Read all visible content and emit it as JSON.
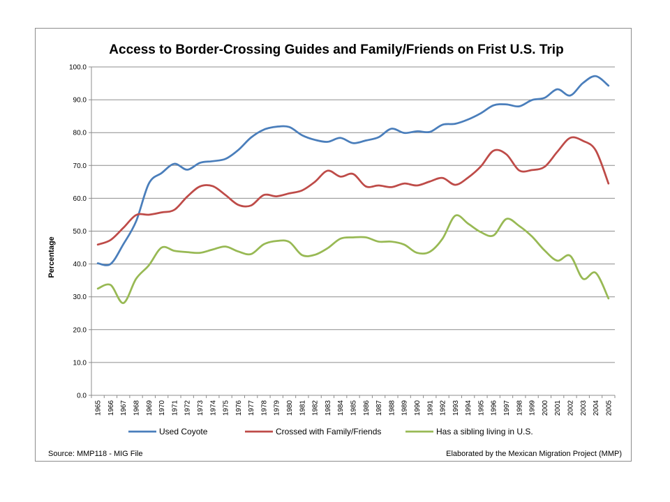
{
  "chart_data": {
    "type": "line",
    "title": "Access to Border-Crossing Guides and Family/Friends on Frist U.S. Trip",
    "ylabel": "Percentage",
    "xlabel": "",
    "ylim": [
      0,
      100
    ],
    "ytick_labels": [
      "0.0",
      "10.0",
      "20.0",
      "30.0",
      "40.0",
      "50.0",
      "60.0",
      "70.0",
      "80.0",
      "90.0",
      "100.0"
    ],
    "grid": "horizontal",
    "legend_position": "bottom",
    "categories": [
      "1965",
      "1966",
      "1967",
      "1968",
      "1969",
      "1970",
      "1971",
      "1972",
      "1973",
      "1974",
      "1975",
      "1976",
      "1977",
      "1978",
      "1979",
      "1980",
      "1981",
      "1982",
      "1983",
      "1984",
      "1985",
      "1986",
      "1987",
      "1988",
      "1989",
      "1990",
      "1991",
      "1992",
      "1993",
      "1994",
      "1995",
      "1996",
      "1997",
      "1998",
      "1999",
      "2000",
      "2001",
      "2002",
      "2003",
      "2004",
      "2005"
    ],
    "series": [
      {
        "name": "Used Coyote",
        "color": "#4a7ebb",
        "values": [
          40.2,
          40.0,
          46.0,
          53.0,
          64.5,
          67.7,
          70.5,
          68.7,
          70.8,
          71.3,
          72.0,
          74.7,
          78.5,
          80.9,
          81.8,
          81.7,
          79.2,
          77.8,
          77.2,
          78.4,
          76.8,
          77.6,
          78.6,
          81.2,
          79.9,
          80.4,
          80.2,
          82.4,
          82.7,
          84.0,
          85.9,
          88.3,
          88.6,
          88.0,
          89.9,
          90.6,
          93.2,
          91.3,
          95.1,
          97.2,
          94.3
        ]
      },
      {
        "name": "Crossed with Family/Friends",
        "color": "#be4b48",
        "values": [
          45.9,
          47.3,
          51.0,
          54.9,
          55.0,
          55.7,
          56.5,
          60.5,
          63.6,
          63.7,
          61.0,
          58.0,
          57.8,
          61.0,
          60.6,
          61.5,
          62.4,
          65.0,
          68.4,
          66.6,
          67.4,
          63.6,
          63.9,
          63.4,
          64.5,
          63.9,
          65.1,
          66.2,
          64.1,
          66.3,
          69.7,
          74.5,
          73.4,
          68.5,
          68.6,
          69.6,
          74.2,
          78.4,
          77.5,
          74.6,
          64.5
        ]
      },
      {
        "name": "Has a sibling living in U.S.",
        "color": "#98b954",
        "values": [
          32.5,
          33.6,
          28.1,
          35.5,
          39.6,
          45.0,
          44.0,
          43.6,
          43.4,
          44.4,
          45.3,
          43.8,
          43.0,
          46.0,
          47.0,
          46.7,
          42.7,
          42.8,
          44.8,
          47.7,
          48.1,
          48.1,
          46.8,
          46.8,
          45.9,
          43.4,
          43.7,
          47.7,
          54.7,
          52.3,
          49.7,
          48.7,
          53.7,
          51.6,
          48.4,
          44.1,
          41.0,
          42.5,
          35.5,
          37.3,
          29.5
        ]
      }
    ],
    "footer": {
      "source": "Source: MMP118 - MIG File",
      "credit": "Elaborated by the Mexican Migration Project (MMP)"
    }
  }
}
